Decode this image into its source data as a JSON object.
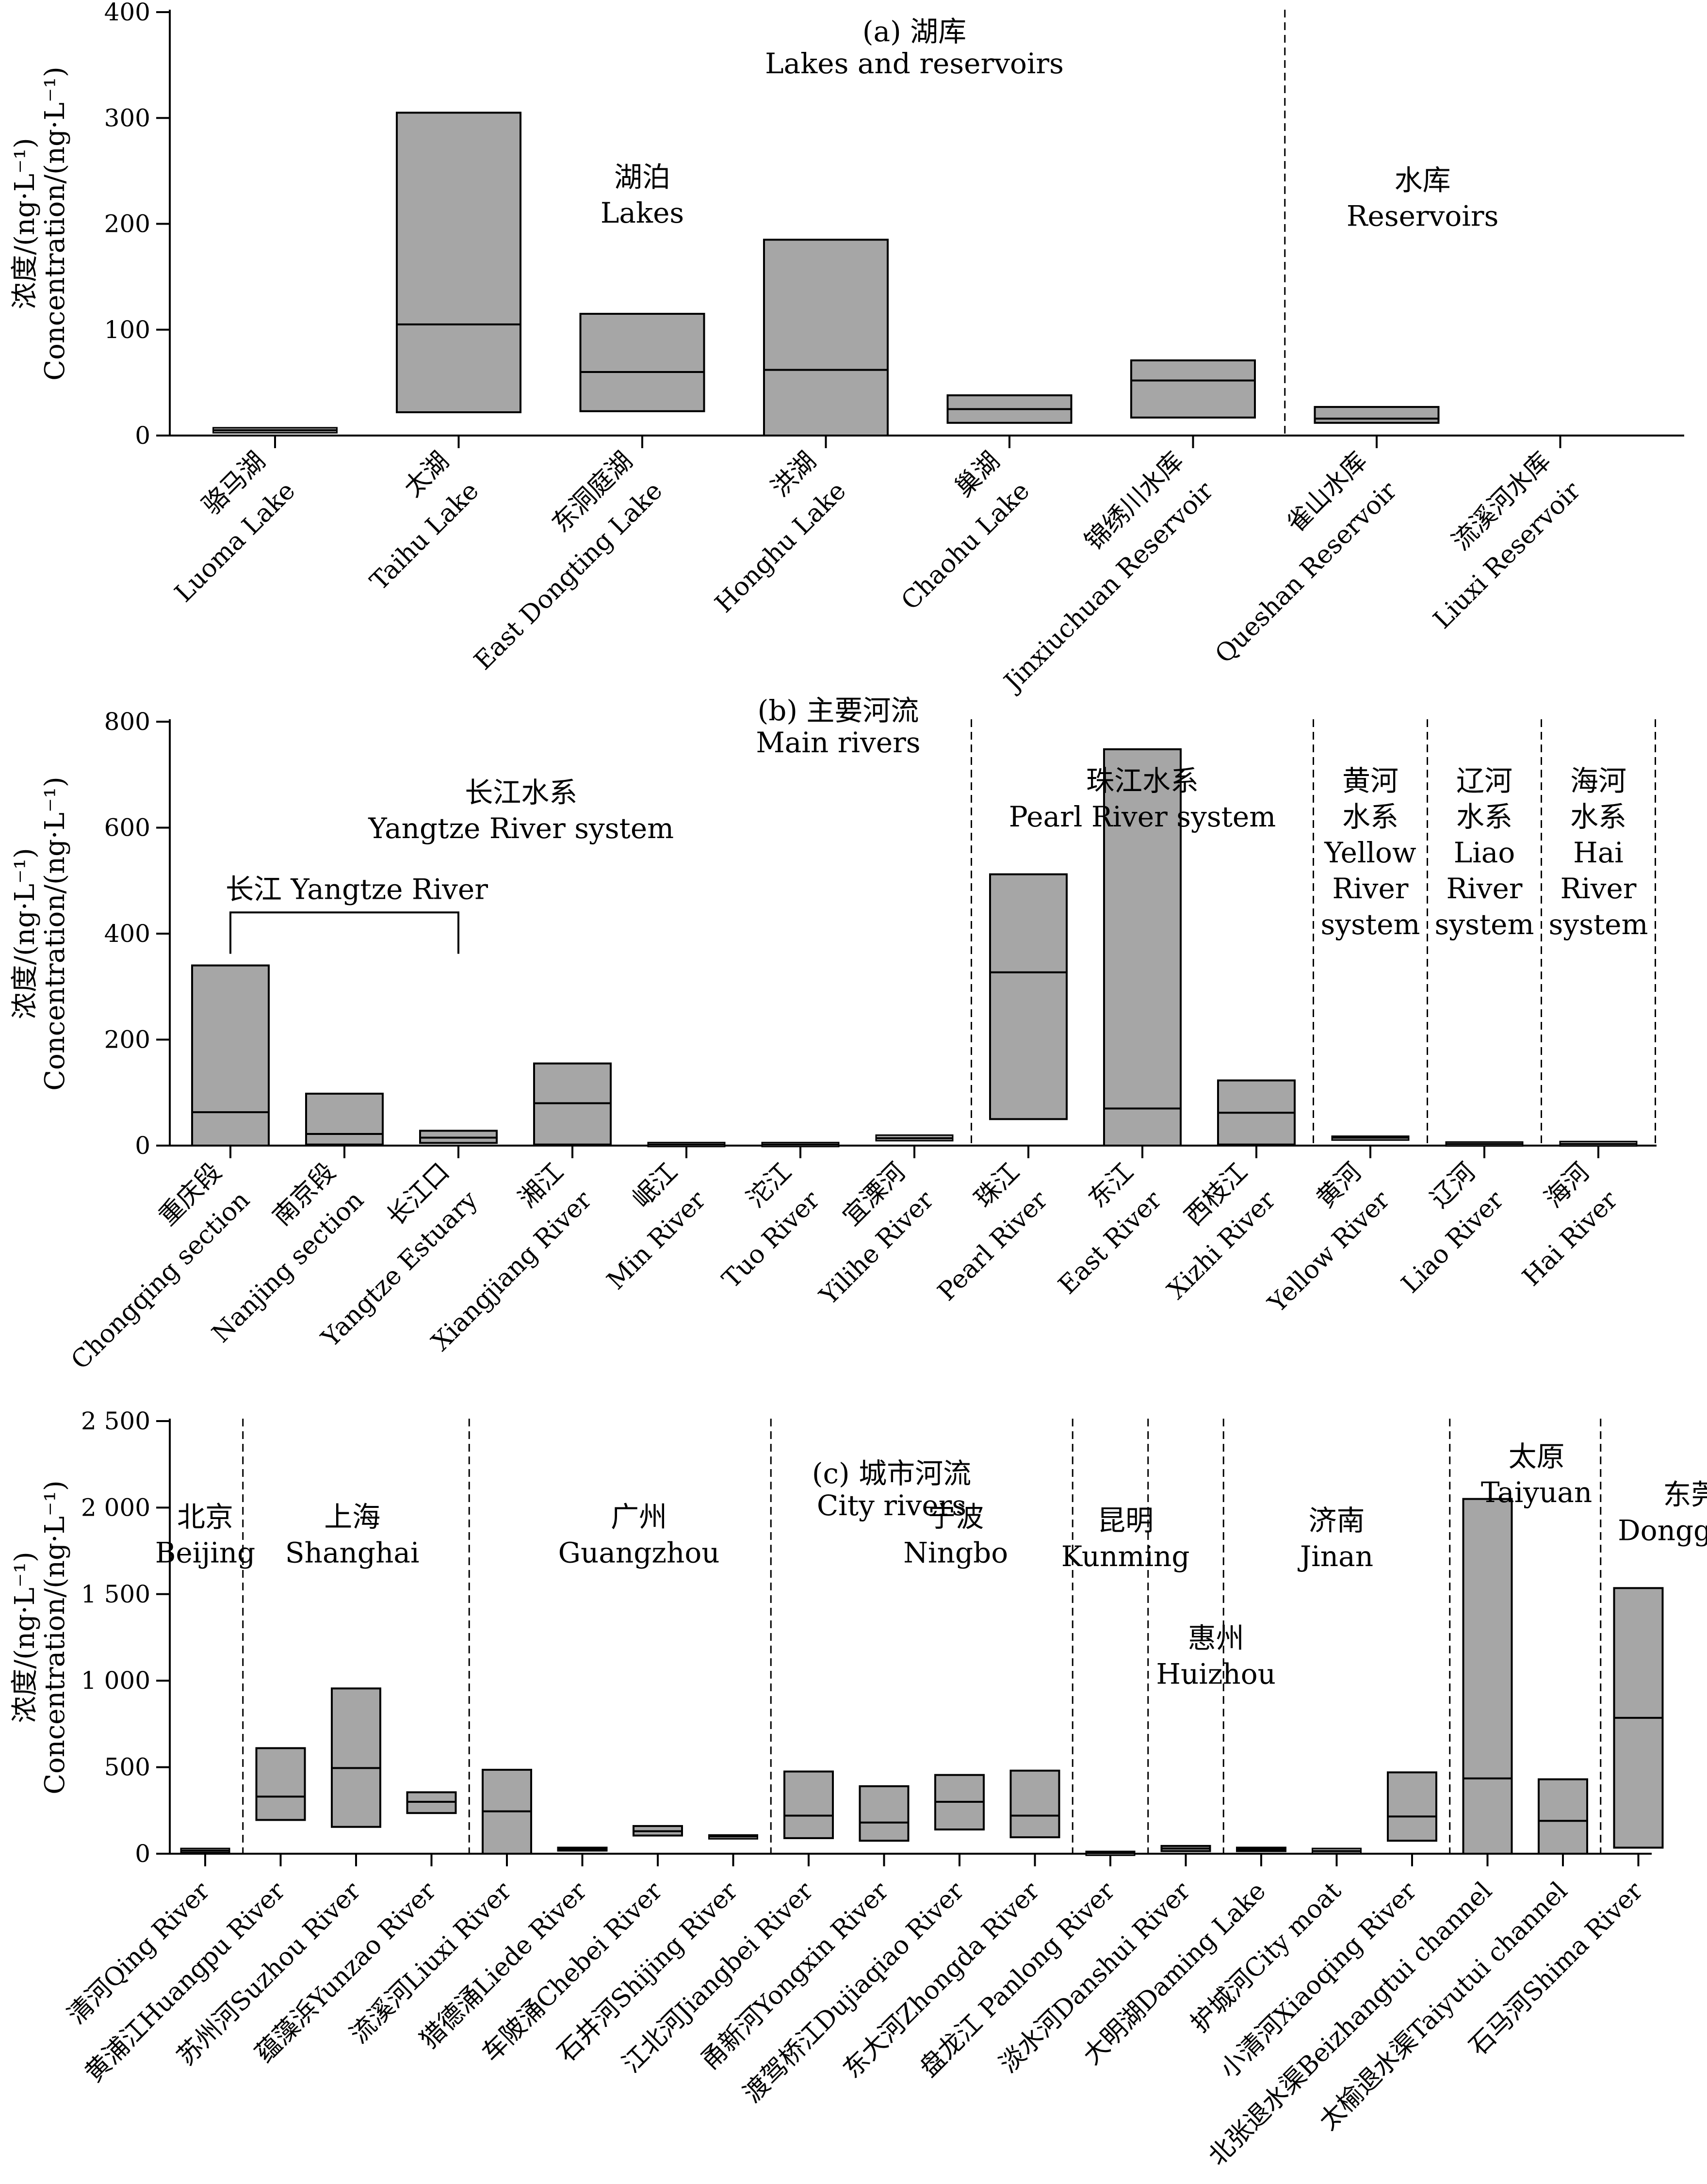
{
  "chart_data": [
    {
      "id": "panel-a",
      "type": "box",
      "title": [
        "(a) 湖库",
        "Lakes and reservoirs"
      ],
      "ylabel": [
        "浓度/(ng·L⁻¹)",
        "Concentration/(ng·L⁻¹)"
      ],
      "ylim": [
        0,
        400
      ],
      "yticks": [
        0,
        100,
        200,
        300,
        400
      ],
      "ytick_labels": [
        "0",
        "100",
        "200",
        "300",
        "400"
      ],
      "categories": [
        {
          "cn": "骆马湖",
          "en": "Luoma Lake",
          "min": 4,
          "median": 5,
          "max": 6
        },
        {
          "cn": "太湖",
          "en": "Taihu Lake",
          "min": 22,
          "median": 105,
          "max": 305
        },
        {
          "cn": "东洞庭湖",
          "en": "East Dongting Lake",
          "min": 23,
          "median": 60,
          "max": 115
        },
        {
          "cn": "洪湖",
          "en": "Honghu Lake",
          "min": 0,
          "median": 62,
          "max": 185
        },
        {
          "cn": "巢湖",
          "en": "Chaohu Lake",
          "min": 12,
          "median": 25,
          "max": 38
        },
        {
          "cn": "锦绣川水库",
          "en": "Jinxiuchuan Reservoir",
          "min": 17,
          "median": 52,
          "max": 71
        },
        {
          "cn": "雀山水库",
          "en": "Queshan Reservoir",
          "min": 12,
          "median": 16,
          "max": 27
        },
        {
          "cn": "流溪河水库",
          "en": "Liuxi Reservoir",
          "min": null,
          "median": null,
          "max": null
        }
      ],
      "dividers_after": [
        5
      ],
      "groups": [
        {
          "lines": [
            "湖泊",
            "Lakes"
          ],
          "anchor_category": 2.0,
          "value": 235
        },
        {
          "lines": [
            "水库",
            "Reservoirs"
          ],
          "anchor_category": 6.25,
          "value": 232
        }
      ]
    },
    {
      "id": "panel-b",
      "type": "box",
      "title": [
        "(b) 主要河流",
        "Main rivers"
      ],
      "ylabel": [
        "浓度/(ng·L⁻¹)",
        "Concentration/(ng·L⁻¹)"
      ],
      "ylim": [
        0,
        800
      ],
      "yticks": [
        0,
        200,
        400,
        600,
        800
      ],
      "ytick_labels": [
        "0",
        "200",
        "400",
        "600",
        "800"
      ],
      "categories": [
        {
          "cn": "重庆段",
          "en": "Chongqing section",
          "min": 0,
          "median": 63,
          "max": 340
        },
        {
          "cn": "南京段",
          "en": "Nanjing section",
          "min": 2,
          "median": 22,
          "max": 98
        },
        {
          "cn": "长江口",
          "en": "Yangtze Estuary",
          "min": 5,
          "median": 15,
          "max": 28
        },
        {
          "cn": "湘江",
          "en": "Xiangjiang River",
          "min": 2,
          "median": 80,
          "max": 155
        },
        {
          "cn": "岷江",
          "en": "Min River",
          "min": 1,
          "median": 2,
          "max": 3
        },
        {
          "cn": "沱江",
          "en": "Tuo River",
          "min": 1,
          "median": 2,
          "max": 3
        },
        {
          "cn": "宜溧河",
          "en": "Yilihe River",
          "min": 12,
          "median": 14,
          "max": 17
        },
        {
          "cn": "珠江",
          "en": "Pearl River",
          "min": 50,
          "median": 327,
          "max": 512
        },
        {
          "cn": "东江",
          "en": "East River",
          "min": 0,
          "median": 70,
          "max": 748
        },
        {
          "cn": "西枝江",
          "en": "Xizhi River",
          "min": 2,
          "median": 62,
          "max": 123
        },
        {
          "cn": "黄河",
          "en": "Yellow River",
          "min": 15,
          "median": 15,
          "max": 15
        },
        {
          "cn": "辽河",
          "en": "Liao River",
          "min": 2,
          "median": 3,
          "max": 4
        },
        {
          "cn": "海河",
          "en": "Hai River",
          "min": 2,
          "median": 3,
          "max": 5
        }
      ],
      "dividers_after": [
        6,
        9,
        10,
        11,
        12
      ],
      "bracket": {
        "label": "长江 Yangtze River",
        "from": 0,
        "to": 2,
        "top": 440,
        "bottom": 362
      },
      "groups": [
        {
          "lines": [
            "长江水系",
            "Yangtze River system"
          ],
          "anchor_category": 2.55,
          "value": 648
        },
        {
          "lines": [
            "珠江水系",
            "Pearl River system"
          ],
          "anchor_category": 8.0,
          "value": 670
        },
        {
          "lines": [
            "黄河",
            "水系",
            "Yellow",
            "River",
            "system"
          ],
          "anchor_category": 10.0,
          "value": 670
        },
        {
          "lines": [
            "辽河",
            "水系",
            "Liao",
            "River",
            "system"
          ],
          "anchor_category": 11.0,
          "value": 670
        },
        {
          "lines": [
            "海河",
            "水系",
            "Hai",
            "River",
            "system"
          ],
          "anchor_category": 12.0,
          "value": 670
        }
      ]
    },
    {
      "id": "panel-c",
      "type": "box",
      "title": [
        "(c) 城市河流",
        "City rivers"
      ],
      "ylabel": [
        "浓度/(ng·L⁻¹)",
        "Concentration/(ng·L⁻¹)"
      ],
      "ylim": [
        0,
        2500
      ],
      "yticks": [
        0,
        500,
        1000,
        1500,
        2000,
        2500
      ],
      "ytick_labels": [
        "0",
        "500",
        "1 000",
        "1 500",
        "2 000",
        "2 500"
      ],
      "categories": [
        {
          "cn": "清河",
          "en": "Qing River",
          "min": 15,
          "median": 18,
          "max": 22
        },
        {
          "cn": "黄浦江",
          "en": "Huangpu River",
          "min": 195,
          "median": 330,
          "max": 610
        },
        {
          "cn": "苏州河",
          "en": "Suzhou River",
          "min": 155,
          "median": 495,
          "max": 955
        },
        {
          "cn": "蕴藻浜",
          "en": "Yunzao River",
          "min": 235,
          "median": 300,
          "max": 355
        },
        {
          "cn": "流溪河",
          "en": "Liuxi River",
          "min": 0,
          "median": 245,
          "max": 485
        },
        {
          "cn": "猎德涌",
          "en": "Liede River",
          "min": 18,
          "median": 25,
          "max": 35
        },
        {
          "cn": "车陂涌",
          "en": "Chebei River",
          "min": 105,
          "median": 130,
          "max": 160
        },
        {
          "cn": "石井河",
          "en": "Shijing River",
          "min": 100,
          "median": 100,
          "max": 100
        },
        {
          "cn": "江北河",
          "en": "Jiangbei River",
          "min": 90,
          "median": 220,
          "max": 475
        },
        {
          "cn": "甬新河",
          "en": "Yongxin River",
          "min": 75,
          "median": 180,
          "max": 390
        },
        {
          "cn": "渡驾桥江",
          "en": "Dujiaqiao River",
          "min": 140,
          "median": 300,
          "max": 455
        },
        {
          "cn": "东大河",
          "en": "Zhongda River",
          "min": 95,
          "median": 220,
          "max": 480
        },
        {
          "cn": "盘龙江",
          "en": " Panlong River",
          "min": 3,
          "median": 4,
          "max": 5
        },
        {
          "cn": "淡水河",
          "en": "Danshui River",
          "min": 15,
          "median": 30,
          "max": 45
        },
        {
          "cn": "大明湖",
          "en": "Daming Lake",
          "min": 15,
          "median": 25,
          "max": 35
        },
        {
          "cn": "护城河",
          "en": "City moat",
          "min": 10,
          "median": 15,
          "max": 22
        },
        {
          "cn": "小清河",
          "en": "Xiaoqing River",
          "min": 75,
          "median": 215,
          "max": 470
        },
        {
          "cn": "北张退水渠",
          "en": "Beizhangtui channel",
          "min": 0,
          "median": 435,
          "max": 2050
        },
        {
          "cn": "太榆退水渠",
          "en": "Taiyutui channel",
          "min": 0,
          "median": 190,
          "max": 430
        },
        {
          "cn": "石马河",
          "en": "Shima River",
          "min": 35,
          "median": 785,
          "max": 1535
        }
      ],
      "dividers_after": [
        0,
        3,
        7,
        11,
        12,
        13,
        16,
        18
      ],
      "groups": [
        {
          "lines": [
            "北京",
            "Beijing"
          ],
          "anchor_category": 0.0,
          "value": 1890
        },
        {
          "lines": [
            "上海",
            "Shanghai"
          ],
          "anchor_category": 1.95,
          "value": 1890
        },
        {
          "lines": [
            "广州",
            "Guangzhou"
          ],
          "anchor_category": 5.75,
          "value": 1890
        },
        {
          "lines": [
            "宁波",
            "Ningbo"
          ],
          "anchor_category": 9.95,
          "value": 1890
        },
        {
          "lines": [
            "昆明",
            "Kunming"
          ],
          "anchor_category": 12.2,
          "value": 1870
        },
        {
          "lines": [
            "惠州",
            "Huizhou"
          ],
          "anchor_category": 13.4,
          "value": 1190
        },
        {
          "lines": [
            "济南",
            "Jinan"
          ],
          "anchor_category": 15.0,
          "value": 1870
        },
        {
          "lines": [
            "太原",
            "Taiyuan"
          ],
          "anchor_category": 17.65,
          "value": 2240
        },
        {
          "lines": [
            "东莞",
            "Dongguan"
          ],
          "anchor_category": 19.7,
          "value": 2020
        }
      ]
    }
  ]
}
